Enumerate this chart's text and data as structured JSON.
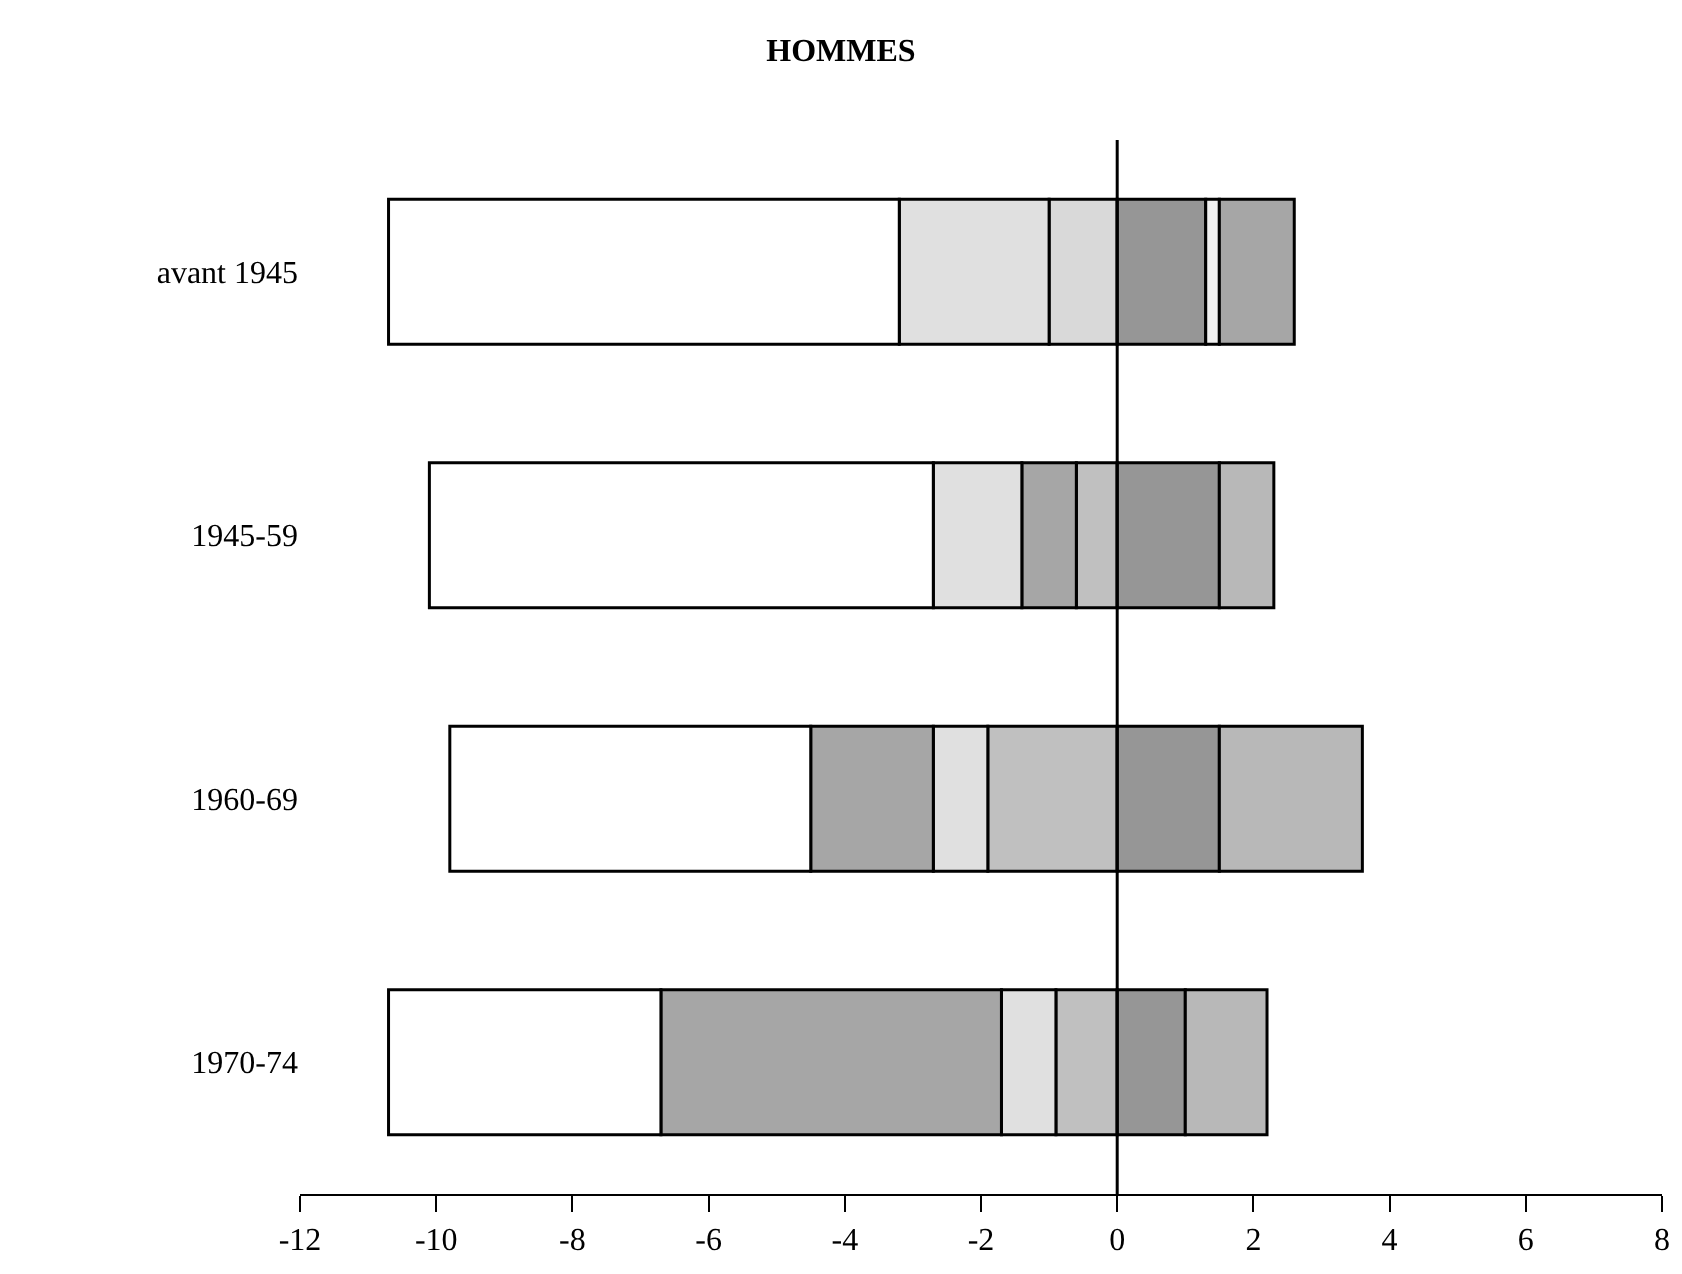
{
  "chart_data": {
    "type": "bar",
    "orientation": "horizontal",
    "stacked": true,
    "title": "HOMMES",
    "categories": [
      "avant 1945",
      "1945-59",
      "1960-69",
      "1970-74"
    ],
    "series": [
      {
        "colors": [
          "#d9d9d9",
          "#c0c0c0",
          "#c0c0c0",
          "#c0c0c0"
        ],
        "values": [
          -1.0,
          -0.6,
          -1.9,
          -0.9
        ]
      },
      {
        "colors": [
          "#e0e0e0",
          "#a6a6a6",
          "#e0e0e0",
          "#e0e0e0"
        ],
        "values": [
          -2.2,
          -0.8,
          -0.8,
          -0.8
        ]
      },
      {
        "colors": [
          "#e0e0e0",
          "#e0e0e0",
          "#a6a6a6",
          "#a6a6a6"
        ],
        "values": [
          null,
          -1.3,
          -1.8,
          -5.0
        ]
      },
      {
        "color": "#ffffff",
        "values": [
          -7.5,
          -7.4,
          -5.3,
          -4.0
        ]
      },
      {
        "color": "#969696",
        "values": [
          1.3,
          1.5,
          1.5,
          1.0
        ]
      },
      {
        "colors": [
          "#f0f0f0",
          "#b8b8b8",
          "#b8b8b8",
          "#b8b8b8"
        ],
        "values": [
          0.2,
          0.8,
          2.1,
          1.2
        ]
      },
      {
        "colors": [
          "#a6a6a6",
          "#a6a6a6",
          "#a6a6a6",
          "#a6a6a6"
        ],
        "values": [
          1.1,
          null,
          null,
          null
        ]
      }
    ],
    "xlim": [
      -12,
      8
    ],
    "xticks": [
      -12,
      -10,
      -8,
      -6,
      -4,
      -2,
      0,
      2,
      4,
      6,
      8
    ],
    "grid": false,
    "ref_lines": [
      {
        "axis": "x",
        "value": 0
      }
    ]
  }
}
